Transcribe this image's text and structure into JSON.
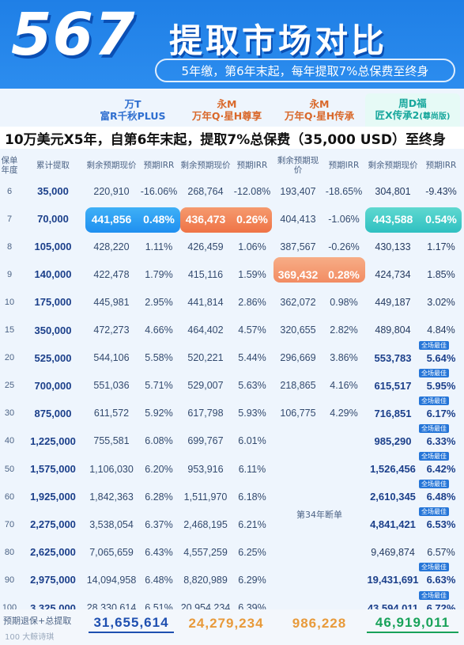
{
  "header": {
    "big_number": "567",
    "title": "提取市场对比",
    "subtitle": "5年缴，第6年末起，每年提取7%总保费至终身"
  },
  "columns": [
    {
      "line1": "万T",
      "line2": "富R千秋PLUS",
      "tag": ""
    },
    {
      "line1": "永M",
      "line2": "万年Q·星H尊享",
      "tag": ""
    },
    {
      "line1": "永M",
      "line2": "万年Q·星H传承",
      "tag": ""
    },
    {
      "line1": "周D福",
      "line2": "匠X传承2",
      "tag": "(尊尚版)"
    }
  ],
  "banner": "10万美元X5年，自第6年末起，提取7%总保费（35,000 USD）至终身",
  "table_header": {
    "year": "保单年度",
    "cum": "累计提取",
    "value": "剩余预期现价",
    "irr": "预期IRR"
  },
  "badge_label": "全场最佳",
  "note_34": "第34年断单",
  "rows": [
    {
      "year": "6",
      "cum": "35,000",
      "v1": "220,910",
      "i1": "-16.06%",
      "v2": "268,764",
      "i2": "-12.08%",
      "v3": "193,407",
      "i3": "-18.65%",
      "v4": "304,801",
      "i4": "-9.43%"
    },
    {
      "year": "7",
      "cum": "70,000",
      "v1": "441,856",
      "i1": "0.48%",
      "v2": "436,473",
      "i2": "0.26%",
      "v3": "404,413",
      "i3": "-1.06%",
      "v4": "443,588",
      "i4": "0.54%"
    },
    {
      "year": "8",
      "cum": "105,000",
      "v1": "428,220",
      "i1": "1.11%",
      "v2": "426,459",
      "i2": "1.06%",
      "v3": "387,567",
      "i3": "-0.26%",
      "v4": "430,133",
      "i4": "1.17%"
    },
    {
      "year": "9",
      "cum": "140,000",
      "v1": "422,478",
      "i1": "1.79%",
      "v2": "415,116",
      "i2": "1.59%",
      "v3": "369,432",
      "i3": "0.28%",
      "v4": "424,734",
      "i4": "1.85%"
    },
    {
      "year": "10",
      "cum": "175,000",
      "v1": "445,981",
      "i1": "2.95%",
      "v2": "441,814",
      "i2": "2.86%",
      "v3": "362,072",
      "i3": "0.98%",
      "v4": "449,187",
      "i4": "3.02%"
    },
    {
      "year": "15",
      "cum": "350,000",
      "v1": "472,273",
      "i1": "4.66%",
      "v2": "464,402",
      "i2": "4.57%",
      "v3": "320,655",
      "i3": "2.82%",
      "v4": "489,804",
      "i4": "4.84%"
    },
    {
      "year": "20",
      "cum": "525,000",
      "v1": "544,106",
      "i1": "5.58%",
      "v2": "520,221",
      "i2": "5.44%",
      "v3": "296,669",
      "i3": "3.86%",
      "v4": "553,783",
      "i4": "5.64%"
    },
    {
      "year": "25",
      "cum": "700,000",
      "v1": "551,036",
      "i1": "5.71%",
      "v2": "529,007",
      "i2": "5.63%",
      "v3": "218,865",
      "i3": "4.16%",
      "v4": "615,517",
      "i4": "5.95%"
    },
    {
      "year": "30",
      "cum": "875,000",
      "v1": "611,572",
      "i1": "5.92%",
      "v2": "617,798",
      "i2": "5.93%",
      "v3": "106,775",
      "i3": "4.29%",
      "v4": "716,851",
      "i4": "6.17%"
    },
    {
      "year": "40",
      "cum": "1,225,000",
      "v1": "755,581",
      "i1": "6.08%",
      "v2": "699,767",
      "i2": "6.01%",
      "v3": "",
      "i3": "",
      "v4": "985,290",
      "i4": "6.33%"
    },
    {
      "year": "50",
      "cum": "1,575,000",
      "v1": "1,106,030",
      "i1": "6.20%",
      "v2": "953,916",
      "i2": "6.11%",
      "v3": "",
      "i3": "",
      "v4": "1,526,456",
      "i4": "6.42%"
    },
    {
      "year": "60",
      "cum": "1,925,000",
      "v1": "1,842,363",
      "i1": "6.28%",
      "v2": "1,511,970",
      "i2": "6.18%",
      "v3": "",
      "i3": "",
      "v4": "2,610,345",
      "i4": "6.48%"
    },
    {
      "year": "70",
      "cum": "2,275,000",
      "v1": "3,538,054",
      "i1": "6.37%",
      "v2": "2,468,195",
      "i2": "6.21%",
      "v3": "",
      "i3": "",
      "v4": "4,841,421",
      "i4": "6.53%"
    },
    {
      "year": "80",
      "cum": "2,625,000",
      "v1": "7,065,659",
      "i1": "6.43%",
      "v2": "4,557,259",
      "i2": "6.25%",
      "v3": "",
      "i3": "",
      "v4": "9,469,874",
      "i4": "6.57%"
    },
    {
      "year": "90",
      "cum": "2,975,000",
      "v1": "14,094,958",
      "i1": "6.48%",
      "v2": "8,820,989",
      "i2": "6.29%",
      "v3": "",
      "i3": "",
      "v4": "19,431,691",
      "i4": "6.63%"
    },
    {
      "year": "100",
      "cum": "3,325,000",
      "v1": "28,330,614",
      "i1": "6.51%",
      "v2": "20,954,234",
      "i2": "6.39%",
      "v3": "",
      "i3": "",
      "v4": "43,594,011",
      "i4": "6.72%"
    }
  ],
  "footer": {
    "label_line1": "预期退保+总提取",
    "label_line2": "100",
    "values": [
      "31,655,614",
      "24,279,234",
      "986,228",
      "46,919,011"
    ],
    "watermark": "大鲸诗琪"
  }
}
